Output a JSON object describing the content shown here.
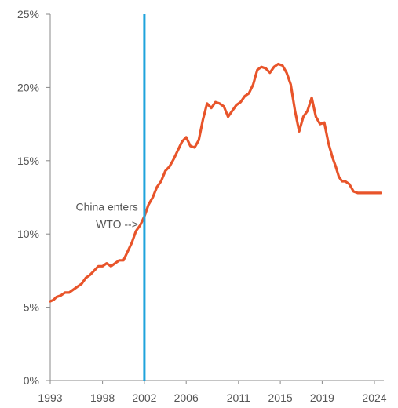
{
  "chart_data": {
    "type": "line",
    "title": "",
    "xlabel": "",
    "ylabel": "",
    "x_ticks": [
      "1993",
      "1998",
      "2002",
      "2006",
      "2011",
      "2015",
      "2019",
      "2024"
    ],
    "y_ticks": [
      "0%",
      "5%",
      "10%",
      "15%",
      "20%",
      "25%"
    ],
    "xlim": [
      1993.0,
      2024.9
    ],
    "ylim": [
      0,
      25
    ],
    "grid": false,
    "legend": "none",
    "colors": {
      "series": "#e8542a",
      "marker": "#1fa3dc",
      "axis": "#888888",
      "text": "#555555"
    },
    "series": [
      {
        "x": [
          1993.0,
          1993.3,
          1993.6,
          1994.0,
          1994.4,
          1994.8,
          1995.2,
          1995.6,
          1996.0,
          1996.4,
          1996.8,
          1997.2,
          1997.6,
          1998.0,
          1998.4,
          1998.8,
          1999.2,
          1999.6,
          2000.0,
          2000.4,
          2000.8,
          2001.2,
          2001.6,
          2002.0,
          2002.4,
          2002.8,
          2003.2,
          2003.6,
          2004.0,
          2004.4,
          2004.8,
          2005.2,
          2005.6,
          2006.0,
          2006.4,
          2006.8,
          2007.2,
          2007.6,
          2008.0,
          2008.4,
          2008.8,
          2009.2,
          2009.6,
          2010.0,
          2010.4,
          2010.8,
          2011.2,
          2011.6,
          2012.0,
          2012.4,
          2012.8,
          2013.2,
          2013.6,
          2014.0,
          2014.4,
          2014.8,
          2015.2,
          2015.6,
          2016.0,
          2016.4,
          2016.8,
          2017.2,
          2017.6,
          2018.0,
          2018.4,
          2018.8,
          2019.2,
          2019.6,
          2020.0,
          2020.3,
          2020.6,
          2020.9,
          2021.2,
          2021.6,
          2022.0,
          2022.4,
          2022.8,
          2023.2,
          2023.6,
          2024.0,
          2024.3,
          2024.6
        ],
        "values": [
          5.4,
          5.5,
          5.7,
          5.8,
          6.0,
          6.0,
          6.2,
          6.4,
          6.6,
          7.0,
          7.2,
          7.5,
          7.8,
          7.8,
          8.0,
          7.8,
          8.0,
          8.2,
          8.2,
          8.8,
          9.4,
          10.2,
          10.6,
          11.2,
          12.0,
          12.5,
          13.2,
          13.6,
          14.3,
          14.6,
          15.1,
          15.7,
          16.3,
          16.6,
          16.0,
          15.9,
          16.4,
          17.8,
          18.9,
          18.6,
          19.0,
          18.9,
          18.7,
          18.0,
          18.4,
          18.8,
          19.0,
          19.4,
          19.6,
          20.2,
          21.2,
          21.4,
          21.3,
          21.0,
          21.4,
          21.6,
          21.5,
          21.0,
          20.2,
          18.4,
          17.0,
          18.0,
          18.4,
          19.3,
          18.0,
          17.5,
          17.6,
          16.2,
          15.2,
          14.6,
          13.9,
          13.6,
          13.6,
          13.4,
          12.9,
          12.8,
          12.8,
          12.8,
          12.8,
          12.8,
          12.8,
          12.8
        ]
      }
    ],
    "marker_line": {
      "x": 2002.0
    },
    "annotation": {
      "line1": "China enters",
      "line2": "WTO -->",
      "x": 2002.0,
      "y": 10.3
    }
  }
}
